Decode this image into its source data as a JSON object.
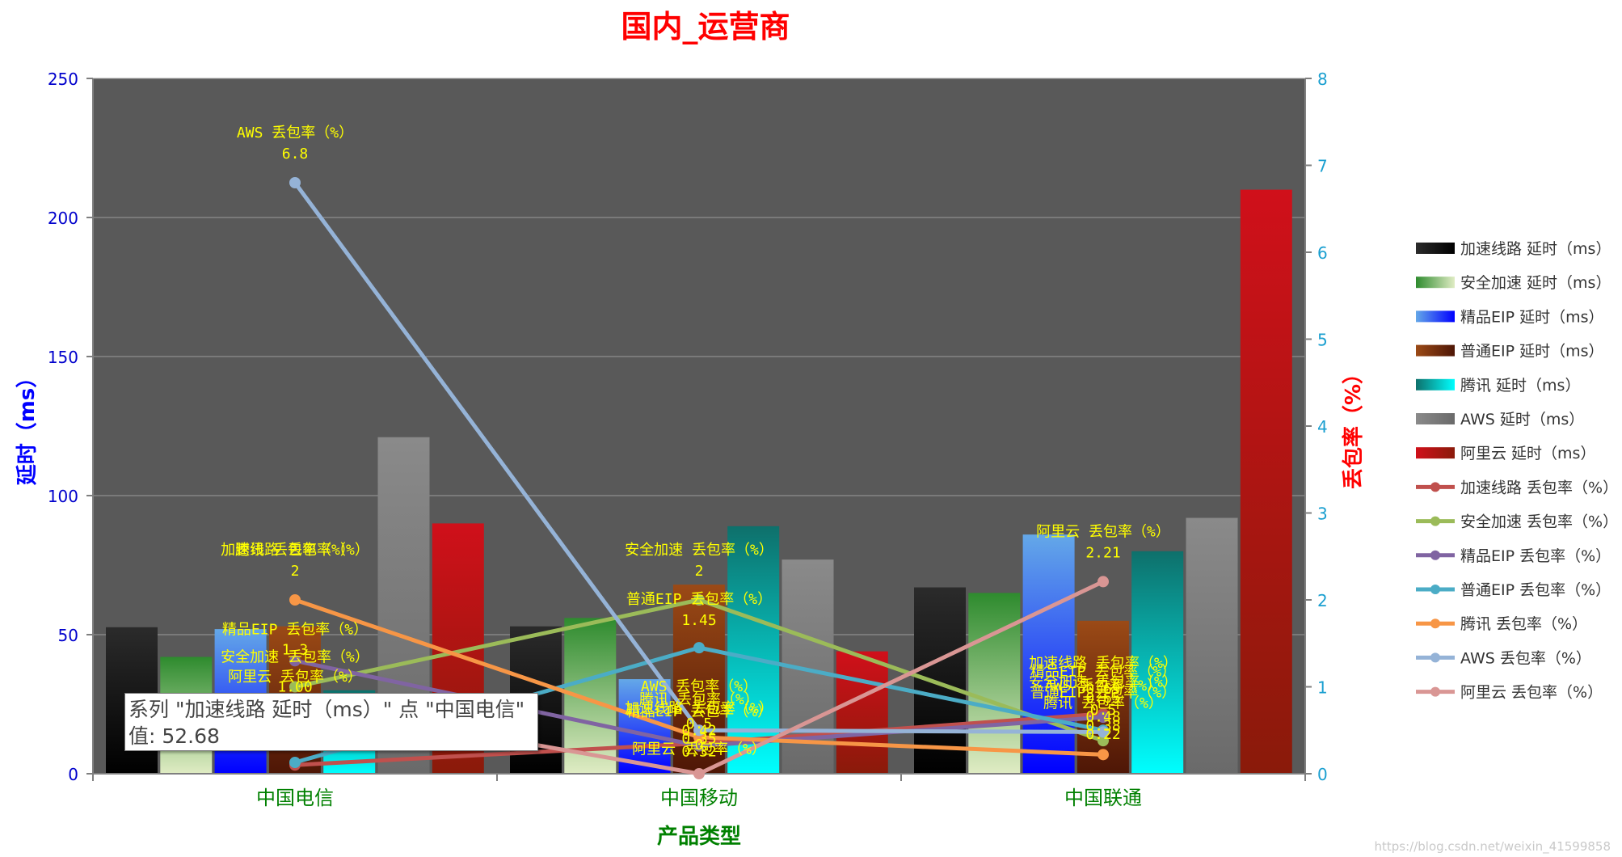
{
  "chart_data": {
    "type": "bar",
    "title": "国内_运营商",
    "xlabel": "产品类型",
    "ylabel": "延时（ms）",
    "y2label": "丢包率（%）",
    "categories": [
      "中国电信",
      "中国移动",
      "中国联通"
    ],
    "ylim": [
      0,
      250
    ],
    "y_ticks": [
      0,
      50,
      100,
      150,
      200,
      250
    ],
    "y2lim": [
      0,
      8
    ],
    "y2_ticks": [
      0,
      1,
      2,
      3,
      4,
      5,
      6,
      7,
      8
    ],
    "grid": true,
    "legend_position": "right",
    "plot_background": "#595959",
    "bar_series": [
      {
        "name": "加速线路 延时（ms）",
        "values": [
          52.68,
          53,
          67
        ],
        "color": "#2b2b2b",
        "color2": "#000000"
      },
      {
        "name": "安全加速 延时（ms）",
        "values": [
          42,
          56,
          65
        ],
        "color": "#2e8b2e",
        "color2": "#e0ecc4"
      },
      {
        "name": "精品EIP 延时（ms）",
        "values": [
          52,
          34,
          86
        ],
        "color": "#64a8e8",
        "color2": "#0000ff"
      },
      {
        "name": "普通EIP 延时（ms）",
        "values": [
          53,
          68,
          55
        ],
        "color": "#9b4a16",
        "color2": "#4e1606"
      },
      {
        "name": "腾讯 延时（ms）",
        "values": [
          30,
          89,
          80
        ],
        "color": "#0e706b",
        "color2": "#00ffff"
      },
      {
        "name": "AWS 延时（ms）",
        "values": [
          121,
          77,
          92
        ],
        "color": "#8a8a8a",
        "color2": "#6a6a6a"
      },
      {
        "name": "阿里云 延时（ms）",
        "values": [
          90,
          44,
          210
        ],
        "color": "#d0101a",
        "color2": "#8a1a0a"
      }
    ],
    "line_series": [
      {
        "name": "加速线路 丢包率（%）",
        "values": [
          0.1,
          0.35,
          0.69
        ],
        "color": "#c0504d"
      },
      {
        "name": "安全加速 丢包率（%）",
        "values": [
          1.0,
          2.0,
          0.38
        ],
        "color": "#9bbb59"
      },
      {
        "name": "精品EIP 丢包率（%）",
        "values": [
          1.3,
          0.32,
          0.65
        ],
        "color": "#8064a2"
      },
      {
        "name": "普通EIP 丢包率（%）",
        "values": [
          0.13,
          1.45,
          0.5
        ],
        "color": "#4bacc6"
      },
      {
        "name": "腾讯 丢包率（%）",
        "values": [
          2.0,
          0.42,
          0.22
        ],
        "color": "#f79646"
      },
      {
        "name": "AWS 丢包率（%）",
        "values": [
          6.8,
          0.5,
          0.48
        ],
        "color": "#95b3d7"
      },
      {
        "name": "阿里云 丢包率（%）",
        "values": [
          0.82,
          0,
          2.21
        ],
        "color": "#d99694"
      }
    ],
    "annotations": [
      {
        "text": "AWS 丢包率（%）",
        "cat": 0,
        "val": 6.8,
        "dy": -56
      },
      {
        "text": "6.8",
        "cat": 0,
        "val": 6.8,
        "dy": -30
      },
      {
        "text": "加速线路 丢包率（%）",
        "cat": 0,
        "val": 2.0,
        "dy": -56
      },
      {
        "text": "腾讯 丢包率（%）",
        "cat": 0,
        "val": 2.0,
        "dy": -56
      },
      {
        "text": "2",
        "cat": 0,
        "val": 2.0,
        "dy": -30
      },
      {
        "text": "精品EIP 丢包率（%）",
        "cat": 0,
        "val": 1.3,
        "dy": -33
      },
      {
        "text": "安全加速 丢包率（%）",
        "cat": 0,
        "val": 1.0,
        "dy": -31
      },
      {
        "text": "阿里云 丢包率（%）",
        "cat": 0,
        "val": 0.82,
        "dy": -26
      },
      {
        "text": "1.3",
        "cat": 0,
        "val": 1.3,
        "dy": -8
      },
      {
        "text": "1.00",
        "cat": 0,
        "val": 1.0,
        "dy": 6
      },
      {
        "text": "0.82",
        "cat": 0,
        "val": 0.82,
        "dy": 2
      },
      {
        "text": "安全加速 丢包率（%）",
        "cat": 1,
        "val": 2.0,
        "dy": -56
      },
      {
        "text": "2",
        "cat": 1,
        "val": 2.0,
        "dy": -30
      },
      {
        "text": "普通EIP 丢包率（%）",
        "cat": 1,
        "val": 1.45,
        "dy": -54
      },
      {
        "text": "1.45",
        "cat": 1,
        "val": 1.45,
        "dy": -28
      },
      {
        "text": "AWS 丢包率（%）",
        "cat": 1,
        "val": 0.95,
        "dy": 0
      },
      {
        "text": "腾讯 丢包率（%）",
        "cat": 1,
        "val": 0.8,
        "dy": 0
      },
      {
        "text": "加速线路 丢包率（%）",
        "cat": 1,
        "val": 0.7,
        "dy": 0
      },
      {
        "text": "精品EIP 丢包率（%）",
        "cat": 1,
        "val": 0.66,
        "dy": 0
      },
      {
        "text": "0.5",
        "cat": 1,
        "val": 0.52,
        "dy": 0
      },
      {
        "text": "0.42",
        "cat": 1,
        "val": 0.44,
        "dy": 0
      },
      {
        "text": "0.35",
        "cat": 1,
        "val": 0.35,
        "dy": 0
      },
      {
        "text": "阿里云 丢包率（%）",
        "cat": 1,
        "val": 0.23,
        "dy": 0
      },
      {
        "text": "0.32",
        "cat": 1,
        "val": 0.2,
        "dy": 0
      },
      {
        "text": "0",
        "cat": 1,
        "val": 0.0,
        "dy": -30
      },
      {
        "text": "阿里云 丢包率（%）",
        "cat": 2,
        "val": 2.21,
        "dy": -56
      },
      {
        "text": "2.21",
        "cat": 2,
        "val": 2.21,
        "dy": -30
      },
      {
        "text": "加速线路 丢包率（%）",
        "cat": 2,
        "val": 1.22,
        "dy": 0
      },
      {
        "text": "精品EIP 丢包率（%）",
        "cat": 2,
        "val": 1.12,
        "dy": 0
      },
      {
        "text": "安全加速 丢包率（%）",
        "cat": 2,
        "val": 1.0,
        "dy": 0
      },
      {
        "text": "AWS 丢包率（%）",
        "cat": 2,
        "val": 0.96,
        "dy": 0
      },
      {
        "text": "普通EIP 丢包率（%）",
        "cat": 2,
        "val": 0.88,
        "dy": 0
      },
      {
        "text": "腾讯 丢包率（%）",
        "cat": 2,
        "val": 0.76,
        "dy": 0
      },
      {
        "text": "0.69",
        "cat": 2,
        "val": 0.92,
        "dy": 0
      },
      {
        "text": "0.65",
        "cat": 2,
        "val": 0.82,
        "dy": 0
      },
      {
        "text": "0.5",
        "cat": 2,
        "val": 0.68,
        "dy": 0
      },
      {
        "text": "0.48",
        "cat": 2,
        "val": 0.6,
        "dy": 0
      },
      {
        "text": "0.38",
        "cat": 2,
        "val": 0.5,
        "dy": 0
      },
      {
        "text": "0.22",
        "cat": 2,
        "val": 0.4,
        "dy": 0
      }
    ]
  },
  "tooltip": {
    "line1": "系列 \"加速线路 延时（ms）\" 点 \"中国电信\"",
    "line2": "值: 52.68"
  },
  "watermark": "https://blog.csdn.net/weixin_41599858"
}
